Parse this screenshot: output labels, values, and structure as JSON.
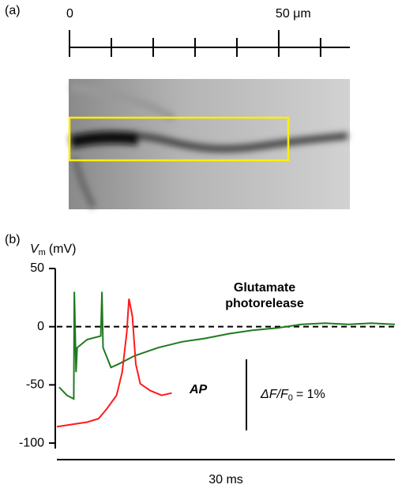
{
  "panel_a": {
    "label": "(a)",
    "scale": {
      "range": [
        0,
        67
      ],
      "ticks": [
        0,
        10,
        20,
        30,
        40,
        50,
        60
      ],
      "labels": [
        0,
        {
          "value": 50,
          "label": "50 μm"
        }
      ]
    }
  },
  "chart_data": {
    "type": "line",
    "panel_label": "(b)",
    "y_label": {
      "symbol": "V",
      "subscript": "m",
      "unit": "(mV)"
    },
    "xlim": [
      0,
      30
    ],
    "ylim": [
      -102,
      50
    ],
    "yticks": [
      50,
      0,
      -50,
      -100
    ],
    "hline": 0,
    "x_scale_bar_label": "30 ms",
    "series": [
      {
        "name": "Glutamate photorelease",
        "color": "#1f7a1f",
        "x": [
          0.2,
          0.9,
          1.5,
          1.55,
          1.7,
          1.8,
          2.7,
          3.9,
          4.0,
          4.1,
          4.8,
          5.5,
          6.9,
          9.0,
          11.1,
          13.2,
          15.3,
          17.4,
          19.6,
          21.7,
          23.8,
          25.9,
          27.9,
          30.0
        ],
        "values": [
          -52,
          -59,
          -62,
          30,
          -39,
          -18,
          -11,
          -8,
          30,
          -18,
          -35,
          -32,
          -25,
          -18,
          -13,
          -10,
          -6,
          -3,
          -1,
          2,
          3,
          2,
          3,
          2
        ]
      },
      {
        "name": "AP",
        "color": "#ff1a1a",
        "x": [
          0,
          1.3,
          2.7,
          3.7,
          4.4,
          5.3,
          5.8,
          6.2,
          6.4,
          6.7,
          7.0,
          7.4,
          8.3,
          9.3,
          10.2
        ],
        "values": [
          -86,
          -84,
          -82,
          -79,
          -71,
          -59,
          -39,
          -5,
          24,
          9,
          -32,
          -49,
          -55,
          -59,
          -57
        ]
      }
    ],
    "fluorescence_scale": {
      "text": "ΔF/F",
      "subscript": "0",
      "rest": "= 1%"
    }
  }
}
